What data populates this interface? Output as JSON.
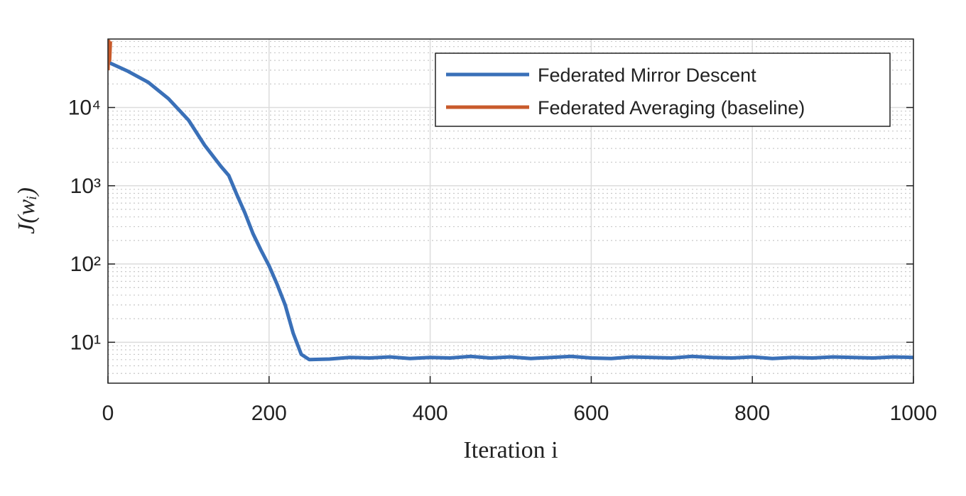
{
  "chart_data": {
    "type": "line",
    "xlabel": "Iteration i",
    "ylabel": "J(wᵢ)",
    "xlim": [
      0,
      1000
    ],
    "xticks": [
      0,
      200,
      400,
      600,
      800,
      1000
    ],
    "ylim": [
      3,
      75000
    ],
    "yticks": [
      {
        "value": 10,
        "label": "10¹"
      },
      {
        "value": 100,
        "label": "10²"
      },
      {
        "value": 1000,
        "label": "10³"
      },
      {
        "value": 10000,
        "label": "10⁴"
      }
    ],
    "log_y": true,
    "grid": true,
    "minor_grid": true,
    "legend": "upper right",
    "series": [
      {
        "name": "Federated Mirror Descent",
        "color": "#3a70b8",
        "x": [
          0,
          25,
          50,
          75,
          100,
          120,
          140,
          150,
          160,
          170,
          180,
          190,
          200,
          210,
          220,
          230,
          240,
          250,
          275,
          300,
          325,
          350,
          375,
          400,
          425,
          450,
          475,
          500,
          525,
          550,
          575,
          600,
          625,
          650,
          675,
          700,
          725,
          750,
          775,
          800,
          825,
          850,
          875,
          900,
          925,
          950,
          975,
          1000
        ],
        "values": [
          38000,
          29000,
          21000,
          13000,
          6900,
          3300,
          1780,
          1350,
          770,
          450,
          245,
          150,
          95,
          55,
          30,
          13,
          7,
          6.0,
          6.1,
          6.4,
          6.3,
          6.5,
          6.2,
          6.4,
          6.3,
          6.6,
          6.3,
          6.5,
          6.2,
          6.4,
          6.6,
          6.3,
          6.2,
          6.5,
          6.4,
          6.3,
          6.6,
          6.4,
          6.3,
          6.5,
          6.2,
          6.4,
          6.3,
          6.5,
          6.4,
          6.3,
          6.5,
          6.4
        ]
      },
      {
        "name": "Federated Averaging (baseline)",
        "color": "#c85a2b",
        "x": [
          0,
          1,
          2,
          3
        ],
        "values": [
          30000,
          70000,
          40000,
          70000
        ]
      }
    ]
  }
}
